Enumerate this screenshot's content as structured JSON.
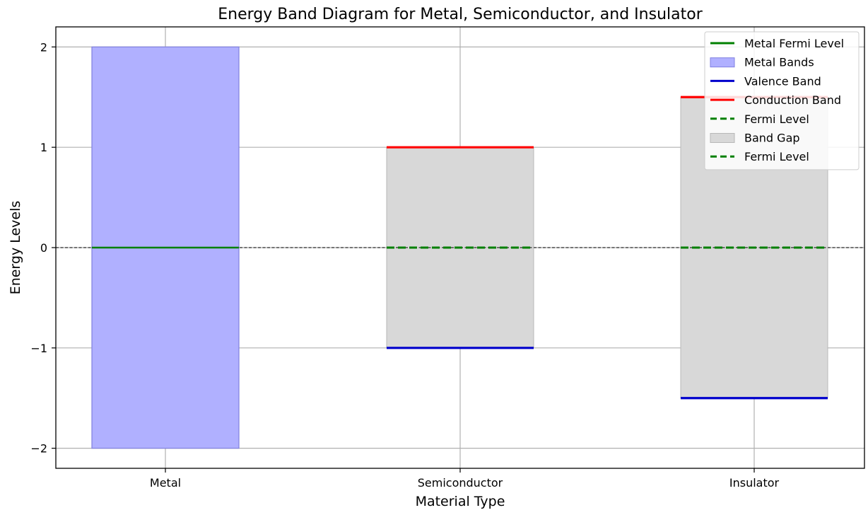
{
  "chart_data": {
    "type": "bar",
    "title": "Energy Band Diagram for Metal, Semiconductor, and Insulator",
    "xlabel": "Material Type",
    "ylabel": "Energy Levels",
    "categories": [
      "Metal",
      "Semiconductor",
      "Insulator"
    ],
    "ylim": [
      -2.2,
      2.2
    ],
    "yticks": [
      -2,
      -1,
      0,
      1,
      2
    ],
    "ytick_labels": [
      "−2",
      "−1",
      "0",
      "1",
      "2"
    ],
    "grid": true,
    "legend_position": "top-right",
    "reference_line": {
      "y": 0,
      "style": "dashed",
      "color": "#000000"
    },
    "metal": {
      "band_bottom": -2,
      "band_top": 2,
      "fermi_level": 0,
      "band_color": "#b0b0ff",
      "fermi_color": "#008000"
    },
    "gapped_materials": [
      {
        "category": "Semiconductor",
        "valence_band": -1,
        "conduction_band": 1,
        "fermi_level": 0
      },
      {
        "category": "Insulator",
        "valence_band": -1.5,
        "conduction_band": 1.5,
        "fermi_level": 0
      }
    ],
    "colors": {
      "valence": "#0000cc",
      "conduction": "#ff0000",
      "fermi": "#008000",
      "gap": "#d8d8d8",
      "grid": "#b0b0b0"
    },
    "legend": [
      {
        "label": "Metal Fermi Level",
        "style": "solid-line",
        "color": "#008000"
      },
      {
        "label": "Metal Bands",
        "style": "patch",
        "color": "#b0b0ff"
      },
      {
        "label": "Valence Band",
        "style": "solid-line",
        "color": "#0000cc"
      },
      {
        "label": "Conduction Band",
        "style": "solid-line",
        "color": "#ff0000"
      },
      {
        "label": "Fermi Level",
        "style": "dashed-line",
        "color": "#008000"
      },
      {
        "label": "Band Gap",
        "style": "patch",
        "color": "#d8d8d8"
      },
      {
        "label": "Fermi Level",
        "style": "dashed-line",
        "color": "#008000"
      }
    ]
  }
}
